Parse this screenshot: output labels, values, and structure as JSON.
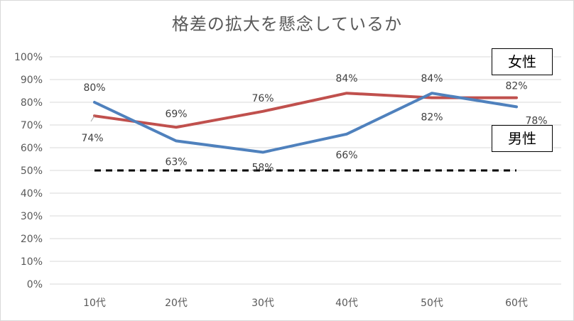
{
  "chart_data": {
    "type": "line",
    "title": "格差の拡大を懸念しているか",
    "categories": [
      "10代",
      "20代",
      "30代",
      "40代",
      "50代",
      "60代"
    ],
    "ylim": [
      0,
      100
    ],
    "y_ticks": [
      "0%",
      "10%",
      "20%",
      "30%",
      "40%",
      "50%",
      "60%",
      "70%",
      "80%",
      "90%",
      "100%"
    ],
    "grid": true,
    "series": [
      {
        "name": "女性",
        "color": "#c0504d",
        "values": [
          74,
          69,
          76,
          84,
          82,
          82
        ],
        "labels": [
          "74%",
          "69%",
          "76%",
          "84%",
          "82%",
          "82%"
        ]
      },
      {
        "name": "男性",
        "color": "#4f81bd",
        "values": [
          80,
          63,
          58,
          66,
          84,
          78
        ],
        "labels": [
          "80%",
          "63%",
          "58%",
          "66%",
          "84%",
          "78%"
        ]
      }
    ],
    "reference_line": {
      "value": 50,
      "style": "dashed",
      "color": "#000000"
    },
    "legend": {
      "placement": "right",
      "female": "女性",
      "male": "男性"
    }
  }
}
